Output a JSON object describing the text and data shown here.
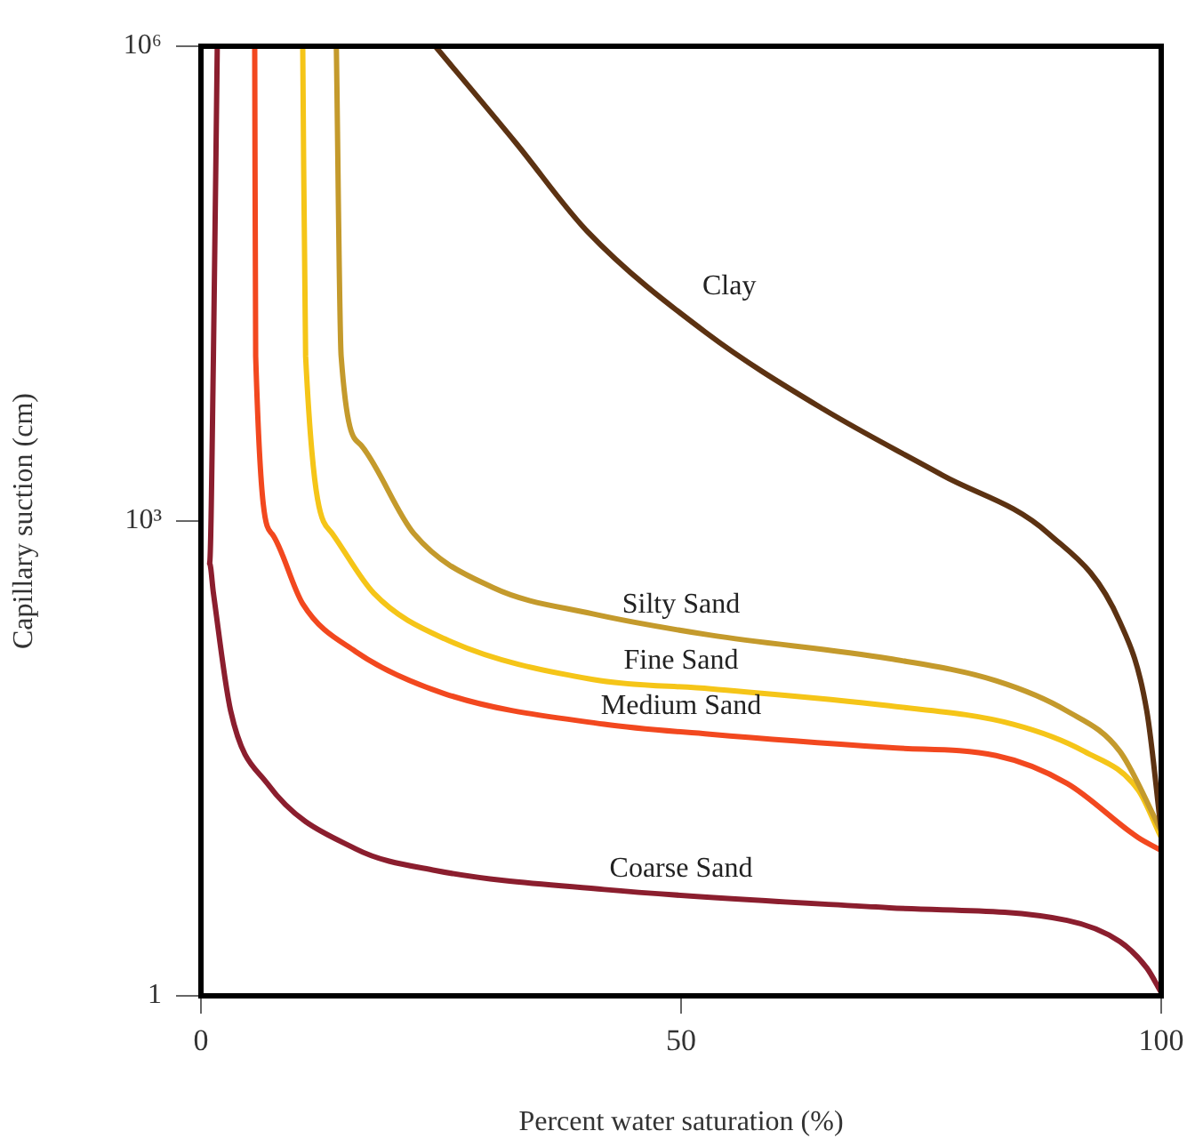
{
  "chart_data": {
    "type": "line",
    "xlabel": "Percent water saturation (%)",
    "ylabel": "Capillary suction (cm)",
    "xlim": [
      0,
      100
    ],
    "xticks": [
      0,
      50,
      100
    ],
    "ylim": [
      1,
      1000000
    ],
    "yticks": [
      1,
      {
        "value": 1000,
        "label": "10³"
      },
      {
        "value": 1000000,
        "label": "10⁶"
      }
    ],
    "log": "y",
    "grid": false,
    "legend": false,
    "marker": "none",
    "line_style": "solid",
    "series": [
      {
        "name": "Clay",
        "color": "#5c3212",
        "x": [
          24.4,
          32.8,
          40.2,
          52.6,
          64.8,
          77.2,
          88.3,
          95.7,
          98.5,
          100
        ],
        "values": [
          1000000,
          245000,
          68000,
          15500,
          5100,
          1950,
          830,
          230,
          63,
          11
        ]
      },
      {
        "name": "Silty Sand",
        "color": "#c49a2c",
        "x": [
          14.1,
          14.6,
          16.7,
          22.2,
          30.4,
          40.7,
          53.1,
          71.7,
          82.8,
          90.2,
          95.7,
          100
        ],
        "values": [
          1000000,
          11000,
          3000,
          830,
          380,
          260,
          190,
          135,
          98,
          63,
          35,
          11
        ]
      },
      {
        "name": "Fine Sand",
        "color": "#f5c518",
        "x": [
          10.6,
          10.9,
          13.7,
          18,
          25.4,
          40.7,
          53.1,
          71.7,
          84.6,
          92,
          97.6,
          100
        ],
        "values": [
          1000000,
          11000,
          830,
          350,
          180,
          100,
          87,
          68,
          52,
          35,
          20,
          10
        ]
      },
      {
        "name": "Medium Sand",
        "color": "#f2481f",
        "x": [
          5.6,
          5.7,
          7.4,
          10.6,
          16.1,
          25.4,
          42,
          53,
          71.7,
          82.8,
          90.2,
          97.6,
          100
        ],
        "values": [
          1000000,
          11000,
          830,
          300,
          150,
          81,
          52,
          45,
          37,
          33,
          22,
          10,
          8.3
        ]
      },
      {
        "name": "Coarse Sand",
        "color": "#8b1e2e",
        "x": [
          1.7,
          1.3,
          0.9,
          1.3,
          3.1,
          6.9,
          16.1,
          24.4,
          42,
          71.7,
          90.2,
          95.7,
          98.5,
          100
        ],
        "values": [
          1000000,
          11000,
          540,
          350,
          63,
          22,
          8.5,
          6.2,
          4.7,
          3.6,
          3.0,
          2.2,
          1.5,
          1.05
        ]
      }
    ]
  }
}
